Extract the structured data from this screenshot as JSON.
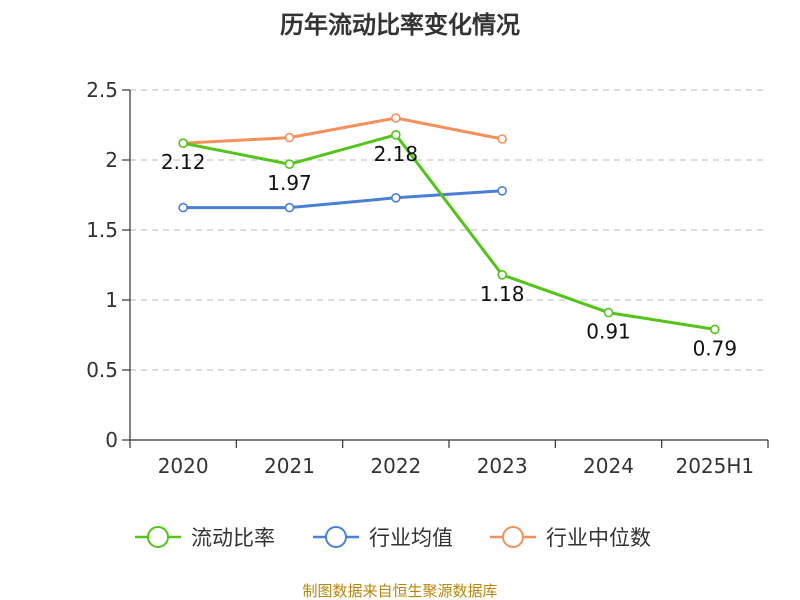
{
  "chart_data": {
    "type": "line",
    "title": "历年流动比率变化情况",
    "categories": [
      "2020",
      "2021",
      "2022",
      "2023",
      "2024",
      "2025H1"
    ],
    "ylim": [
      0,
      2.5
    ],
    "yticks": [
      "0",
      "0.5",
      "1",
      "1.5",
      "2",
      "2.5"
    ],
    "grid": true,
    "legend_position": "bottom",
    "series": [
      {
        "name": "流动比率",
        "color": "#52c41a",
        "values": [
          2.12,
          1.97,
          2.18,
          1.18,
          0.91,
          0.79
        ],
        "labels": [
          "2.12",
          "1.97",
          "2.18",
          "1.18",
          "0.91",
          "0.79"
        ]
      },
      {
        "name": "行业均值",
        "color": "#4a7fd6",
        "values": [
          1.66,
          1.66,
          1.73,
          1.78,
          null,
          null
        ]
      },
      {
        "name": "行业中位数",
        "color": "#f5905a",
        "values": [
          2.12,
          2.16,
          2.3,
          2.15,
          null,
          null
        ]
      }
    ],
    "source": "制图数据来自恒生聚源数据库"
  }
}
